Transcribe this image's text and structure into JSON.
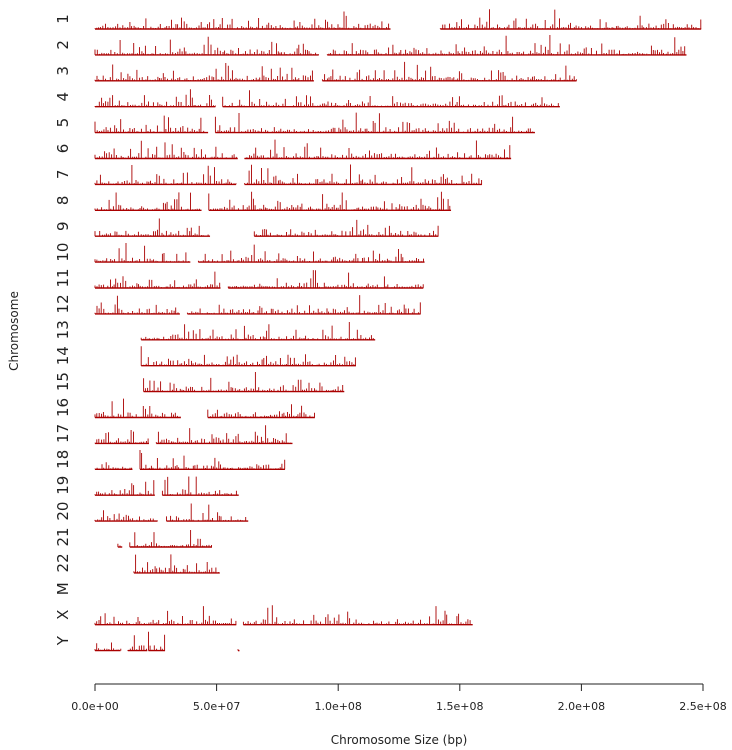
{
  "chart_data": {
    "type": "karyogram-density",
    "title": "",
    "xlabel": "Chromosome Size (bp)",
    "ylabel": "Chromosome",
    "xlim": [
      0,
      250000000
    ],
    "x_ticks": [
      0,
      50000000,
      100000000,
      150000000,
      200000000,
      250000000
    ],
    "x_tick_labels": [
      "0.0e+00",
      "5.0e+07",
      "1.0e+08",
      "1.5e+08",
      "2.0e+08",
      "2.5e+08"
    ],
    "bar_color": "#aa0000",
    "chromosomes": [
      {
        "name": "1",
        "segments": [
          [
            0,
            121500000
          ],
          [
            142000000,
            249250000
          ]
        ]
      },
      {
        "name": "2",
        "segments": [
          [
            0,
            92000000
          ],
          [
            95500000,
            243200000
          ]
        ]
      },
      {
        "name": "3",
        "segments": [
          [
            0,
            90000000
          ],
          [
            93500000,
            198000000
          ]
        ]
      },
      {
        "name": "4",
        "segments": [
          [
            0,
            49500000
          ],
          [
            52500000,
            191150000
          ]
        ]
      },
      {
        "name": "5",
        "segments": [
          [
            0,
            46500000
          ],
          [
            49500000,
            180900000
          ]
        ]
      },
      {
        "name": "6",
        "segments": [
          [
            0,
            58700000
          ],
          [
            61500000,
            171100000
          ]
        ]
      },
      {
        "name": "7",
        "segments": [
          [
            0,
            58000000
          ],
          [
            61500000,
            159100000
          ]
        ]
      },
      {
        "name": "8",
        "segments": [
          [
            0,
            43800000
          ],
          [
            46800000,
            146400000
          ]
        ]
      },
      {
        "name": "9",
        "segments": [
          [
            0,
            47300000
          ],
          [
            65500000,
            141200000
          ]
        ]
      },
      {
        "name": "10",
        "segments": [
          [
            0,
            39200000
          ],
          [
            42500000,
            135500000
          ]
        ]
      },
      {
        "name": "11",
        "segments": [
          [
            0,
            51600000
          ],
          [
            54800000,
            135000000
          ]
        ]
      },
      {
        "name": "12",
        "segments": [
          [
            0,
            34900000
          ],
          [
            38000000,
            133900000
          ]
        ]
      },
      {
        "name": "13",
        "segments": [
          [
            19000000,
            115200000
          ]
        ]
      },
      {
        "name": "14",
        "segments": [
          [
            19000000,
            107300000
          ]
        ]
      },
      {
        "name": "15",
        "segments": [
          [
            20000000,
            102500000
          ]
        ]
      },
      {
        "name": "16",
        "segments": [
          [
            0,
            35300000
          ],
          [
            46400000,
            90400000
          ]
        ]
      },
      {
        "name": "17",
        "segments": [
          [
            0,
            22200000
          ],
          [
            25200000,
            81200000
          ]
        ]
      },
      {
        "name": "18",
        "segments": [
          [
            0,
            15400000
          ],
          [
            18500000,
            78100000
          ]
        ]
      },
      {
        "name": "19",
        "segments": [
          [
            0,
            24600000
          ],
          [
            27700000,
            59100000
          ]
        ]
      },
      {
        "name": "20",
        "segments": [
          [
            0,
            25700000
          ],
          [
            29400000,
            63000000
          ]
        ]
      },
      {
        "name": "21",
        "segments": [
          [
            9400000,
            11200000
          ],
          [
            14300000,
            48100000
          ]
        ]
      },
      {
        "name": "22",
        "segments": [
          [
            16000000,
            51300000
          ]
        ]
      },
      {
        "name": "M",
        "segments": []
      },
      {
        "name": "X",
        "segments": [
          [
            0,
            58100000
          ],
          [
            61000000,
            155300000
          ]
        ]
      },
      {
        "name": "Y",
        "segments": [
          [
            0,
            10400000
          ],
          [
            10600000,
            10700000
          ],
          [
            13500000,
            21500000
          ],
          [
            22000000,
            28800000
          ],
          [
            58800000,
            59400000
          ]
        ]
      }
    ]
  }
}
